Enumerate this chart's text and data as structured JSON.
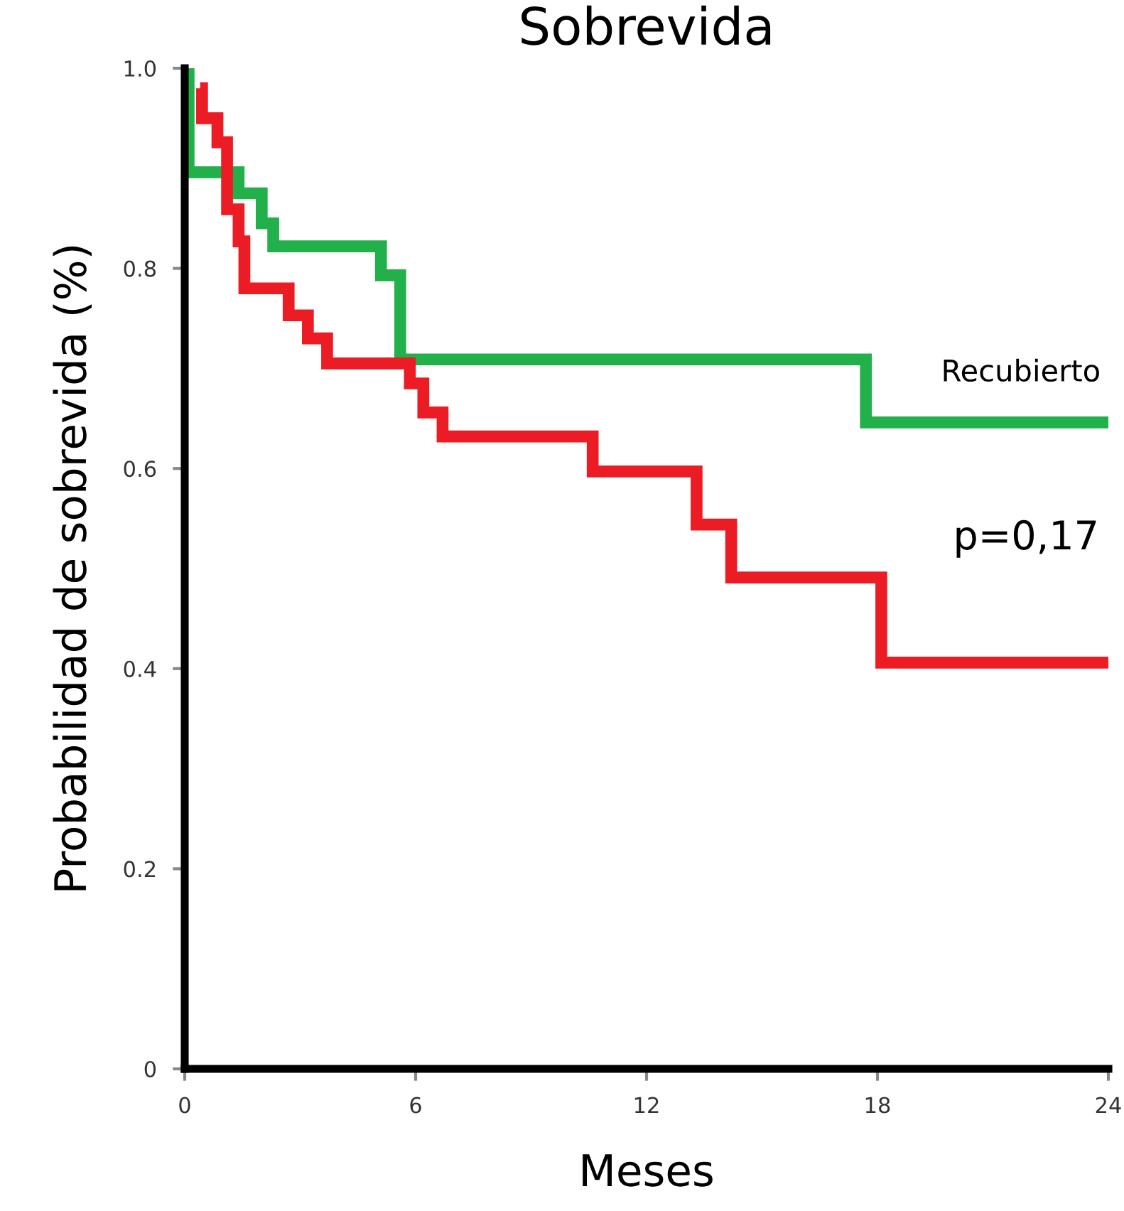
{
  "chart_data": {
    "type": "step",
    "title": "Sobrevida",
    "xlabel": "Meses",
    "ylabel": "Probabilidad de sobrevida (%)",
    "xlim": [
      0,
      24
    ],
    "ylim": [
      0,
      1
    ],
    "xticks": [
      0,
      6,
      12,
      18,
      24
    ],
    "yticks": [
      0,
      {
        "value": 0.2,
        "label": "0.2"
      },
      {
        "value": 0.4,
        "label": "0.4"
      },
      {
        "value": 0.6,
        "label": "0.6"
      },
      {
        "value": 0.8,
        "label": "0.8"
      },
      {
        "value": 1,
        "label": "1.0"
      }
    ],
    "grid": false,
    "legend": false,
    "series": [
      {
        "name": "Recubierto",
        "color": "#22b04b",
        "x": [
          0,
          0.1,
          1.4,
          2.0,
          2.3,
          5.1,
          5.6,
          17.7,
          24
        ],
        "values": [
          1.0,
          0.896,
          0.875,
          0.845,
          0.822,
          0.793,
          0.709,
          0.646,
          0.646
        ]
      },
      {
        "color": "#ec1c24",
        "x": [
          0.4,
          0.45,
          0.85,
          1.1,
          1.4,
          1.55,
          2.7,
          3.2,
          3.7,
          5.85,
          6.2,
          6.7,
          10.6,
          13.3,
          14.2,
          18.1,
          24
        ],
        "values": [
          0.98,
          0.95,
          0.926,
          0.859,
          0.827,
          0.78,
          0.753,
          0.73,
          0.705,
          0.685,
          0.656,
          0.632,
          0.597,
          0.544,
          0.491,
          0.406,
          0.406
        ]
      }
    ],
    "annotations": [
      "p=0,17"
    ]
  }
}
